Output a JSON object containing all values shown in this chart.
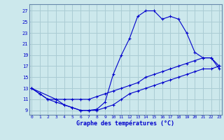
{
  "title": "Graphe des températures (°C)",
  "bg_color": "#cce8ec",
  "grid_color": "#aaccd4",
  "line_color": "#0000cc",
  "x_ticks": [
    0,
    1,
    2,
    3,
    4,
    5,
    6,
    7,
    8,
    9,
    10,
    11,
    12,
    13,
    14,
    15,
    16,
    17,
    18,
    19,
    20,
    21,
    22,
    23
  ],
  "y_ticks": [
    9,
    11,
    13,
    15,
    17,
    19,
    21,
    23,
    25,
    27
  ],
  "xlim": [
    -0.3,
    23.3
  ],
  "ylim": [
    8.2,
    28.2
  ],
  "line1_x": [
    0,
    1,
    2,
    3,
    4,
    5,
    6,
    7,
    8,
    9,
    10,
    11,
    12,
    13,
    14,
    15,
    16,
    17,
    18,
    19,
    20,
    21,
    22,
    23
  ],
  "line1_y": [
    13,
    12,
    11,
    11,
    10,
    9.5,
    9,
    9,
    9.2,
    10.5,
    15.5,
    19,
    22,
    26,
    27,
    27,
    25.5,
    26,
    25.5,
    23,
    19.5,
    18.5,
    18.5,
    17
  ],
  "line2_x": [
    0,
    3,
    4,
    5,
    6,
    7,
    8,
    9,
    10,
    11,
    12,
    13,
    14,
    15,
    16,
    17,
    18,
    19,
    20,
    21,
    22,
    23
  ],
  "line2_y": [
    13,
    11,
    11,
    11,
    11,
    11,
    11.5,
    12,
    12.5,
    13,
    13.5,
    14,
    15,
    15.5,
    16,
    16.5,
    17,
    17.5,
    18,
    18.5,
    18.5,
    16.5
  ],
  "line3_x": [
    0,
    1,
    2,
    3,
    4,
    5,
    6,
    7,
    8,
    9,
    10,
    11,
    12,
    13,
    14,
    15,
    16,
    17,
    18,
    19,
    20,
    21,
    22,
    23
  ],
  "line3_y": [
    13,
    12,
    11,
    10.5,
    10,
    9.5,
    9,
    9,
    9,
    9.5,
    10,
    11,
    12,
    12.5,
    13,
    13.5,
    14,
    14.5,
    15,
    15.5,
    16,
    16.5,
    16.5,
    17
  ]
}
